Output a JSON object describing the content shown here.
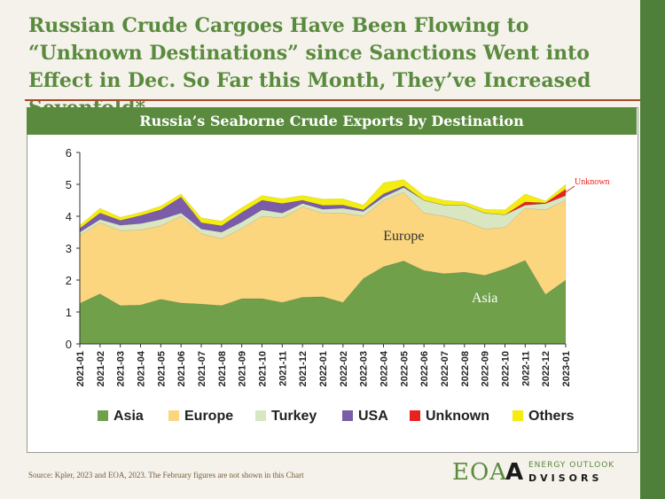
{
  "page": {
    "title": "Russian Crude Cargoes Have Been Flowing to “Unknown Destinations” since Sanctions Went into Effect in Dec. So Far this Month, They’ve Increased Sevenfold*",
    "source": "Source:  Kpler, 2023 and EOA, 2023. The February figures are not shown in this Chart",
    "logo": {
      "mark": "EOA",
      "letter": "A",
      "top_text": "ENERGY OUTLOOK",
      "bottom_text": "DVISORS"
    }
  },
  "chart_data": {
    "type": "area",
    "stacked": true,
    "title": "Russia’s Seaborne Crude Exports by Destination",
    "xlabel": "",
    "ylabel": "",
    "ylim": [
      0,
      6
    ],
    "yticks": [
      0,
      1,
      2,
      3,
      4,
      5,
      6
    ],
    "categories": [
      "2021-01",
      "2021-02",
      "2021-03",
      "2021-04",
      "2021-05",
      "2021-06",
      "2021-07",
      "2021-08",
      "2021-09",
      "2021-10",
      "2021-11",
      "2021-12",
      "2022-01",
      "2022-02",
      "2022-03",
      "2022-04",
      "2022-05",
      "2022-06",
      "2022-07",
      "2022-08",
      "2022-09",
      "2022-10",
      "2022-11",
      "2022-12",
      "2023-01"
    ],
    "series": [
      {
        "name": "Asia",
        "color": "#70a04a",
        "values": [
          1.27,
          1.57,
          1.2,
          1.22,
          1.4,
          1.28,
          1.25,
          1.2,
          1.42,
          1.42,
          1.3,
          1.46,
          1.48,
          1.3,
          2.05,
          2.42,
          2.6,
          2.3,
          2.2,
          2.25,
          2.15,
          2.35,
          2.62,
          1.55,
          2.0
        ]
      },
      {
        "name": "Europe",
        "color": "#fbd67e",
        "values": [
          2.13,
          2.23,
          2.35,
          2.35,
          2.3,
          2.72,
          2.2,
          2.1,
          2.2,
          2.58,
          2.65,
          2.84,
          2.62,
          2.8,
          1.95,
          2.08,
          2.15,
          1.8,
          1.8,
          1.6,
          1.45,
          1.3,
          1.63,
          2.65,
          2.5
        ]
      },
      {
        "name": "Turkey",
        "color": "#d8e6c2",
        "values": [
          0.1,
          0.1,
          0.17,
          0.2,
          0.2,
          0.1,
          0.15,
          0.2,
          0.2,
          0.2,
          0.15,
          0.1,
          0.12,
          0.15,
          0.15,
          0.1,
          0.15,
          0.4,
          0.35,
          0.5,
          0.5,
          0.4,
          0.1,
          0.2,
          0.15
        ]
      },
      {
        "name": "USA",
        "color": "#7a5ca8",
        "values": [
          0.12,
          0.2,
          0.15,
          0.25,
          0.3,
          0.5,
          0.2,
          0.2,
          0.3,
          0.3,
          0.3,
          0.1,
          0.12,
          0.1,
          0.05,
          0.1,
          0.05,
          0,
          0,
          0,
          0,
          0,
          0,
          0,
          0
        ]
      },
      {
        "name": "Unknown",
        "color": "#e8221e",
        "values": [
          0,
          0,
          0,
          0,
          0,
          0,
          0,
          0,
          0,
          0,
          0,
          0,
          0,
          0,
          0,
          0,
          0,
          0,
          0,
          0,
          0,
          0,
          0.1,
          0.02,
          0.2
        ]
      },
      {
        "name": "Others",
        "color": "#f5ec10",
        "values": [
          0.1,
          0.15,
          0.1,
          0.1,
          0.12,
          0.1,
          0.15,
          0.15,
          0.15,
          0.15,
          0.15,
          0.15,
          0.2,
          0.2,
          0.15,
          0.35,
          0.2,
          0.15,
          0.15,
          0.1,
          0.12,
          0.15,
          0.25,
          0.06,
          0.15
        ]
      }
    ],
    "annotations": [
      {
        "text": "Europe",
        "x": "2022-05",
        "y": 3.25
      },
      {
        "text": "Asia",
        "x": "2022-09",
        "y": 1.3
      },
      {
        "text": "Unknown",
        "x": "2023-01",
        "y": 5.0
      }
    ],
    "legend": {
      "position": "bottom",
      "items": [
        "Asia",
        "Europe",
        "Turkey",
        "USA",
        "Unknown",
        "Others"
      ]
    },
    "grid": false
  }
}
